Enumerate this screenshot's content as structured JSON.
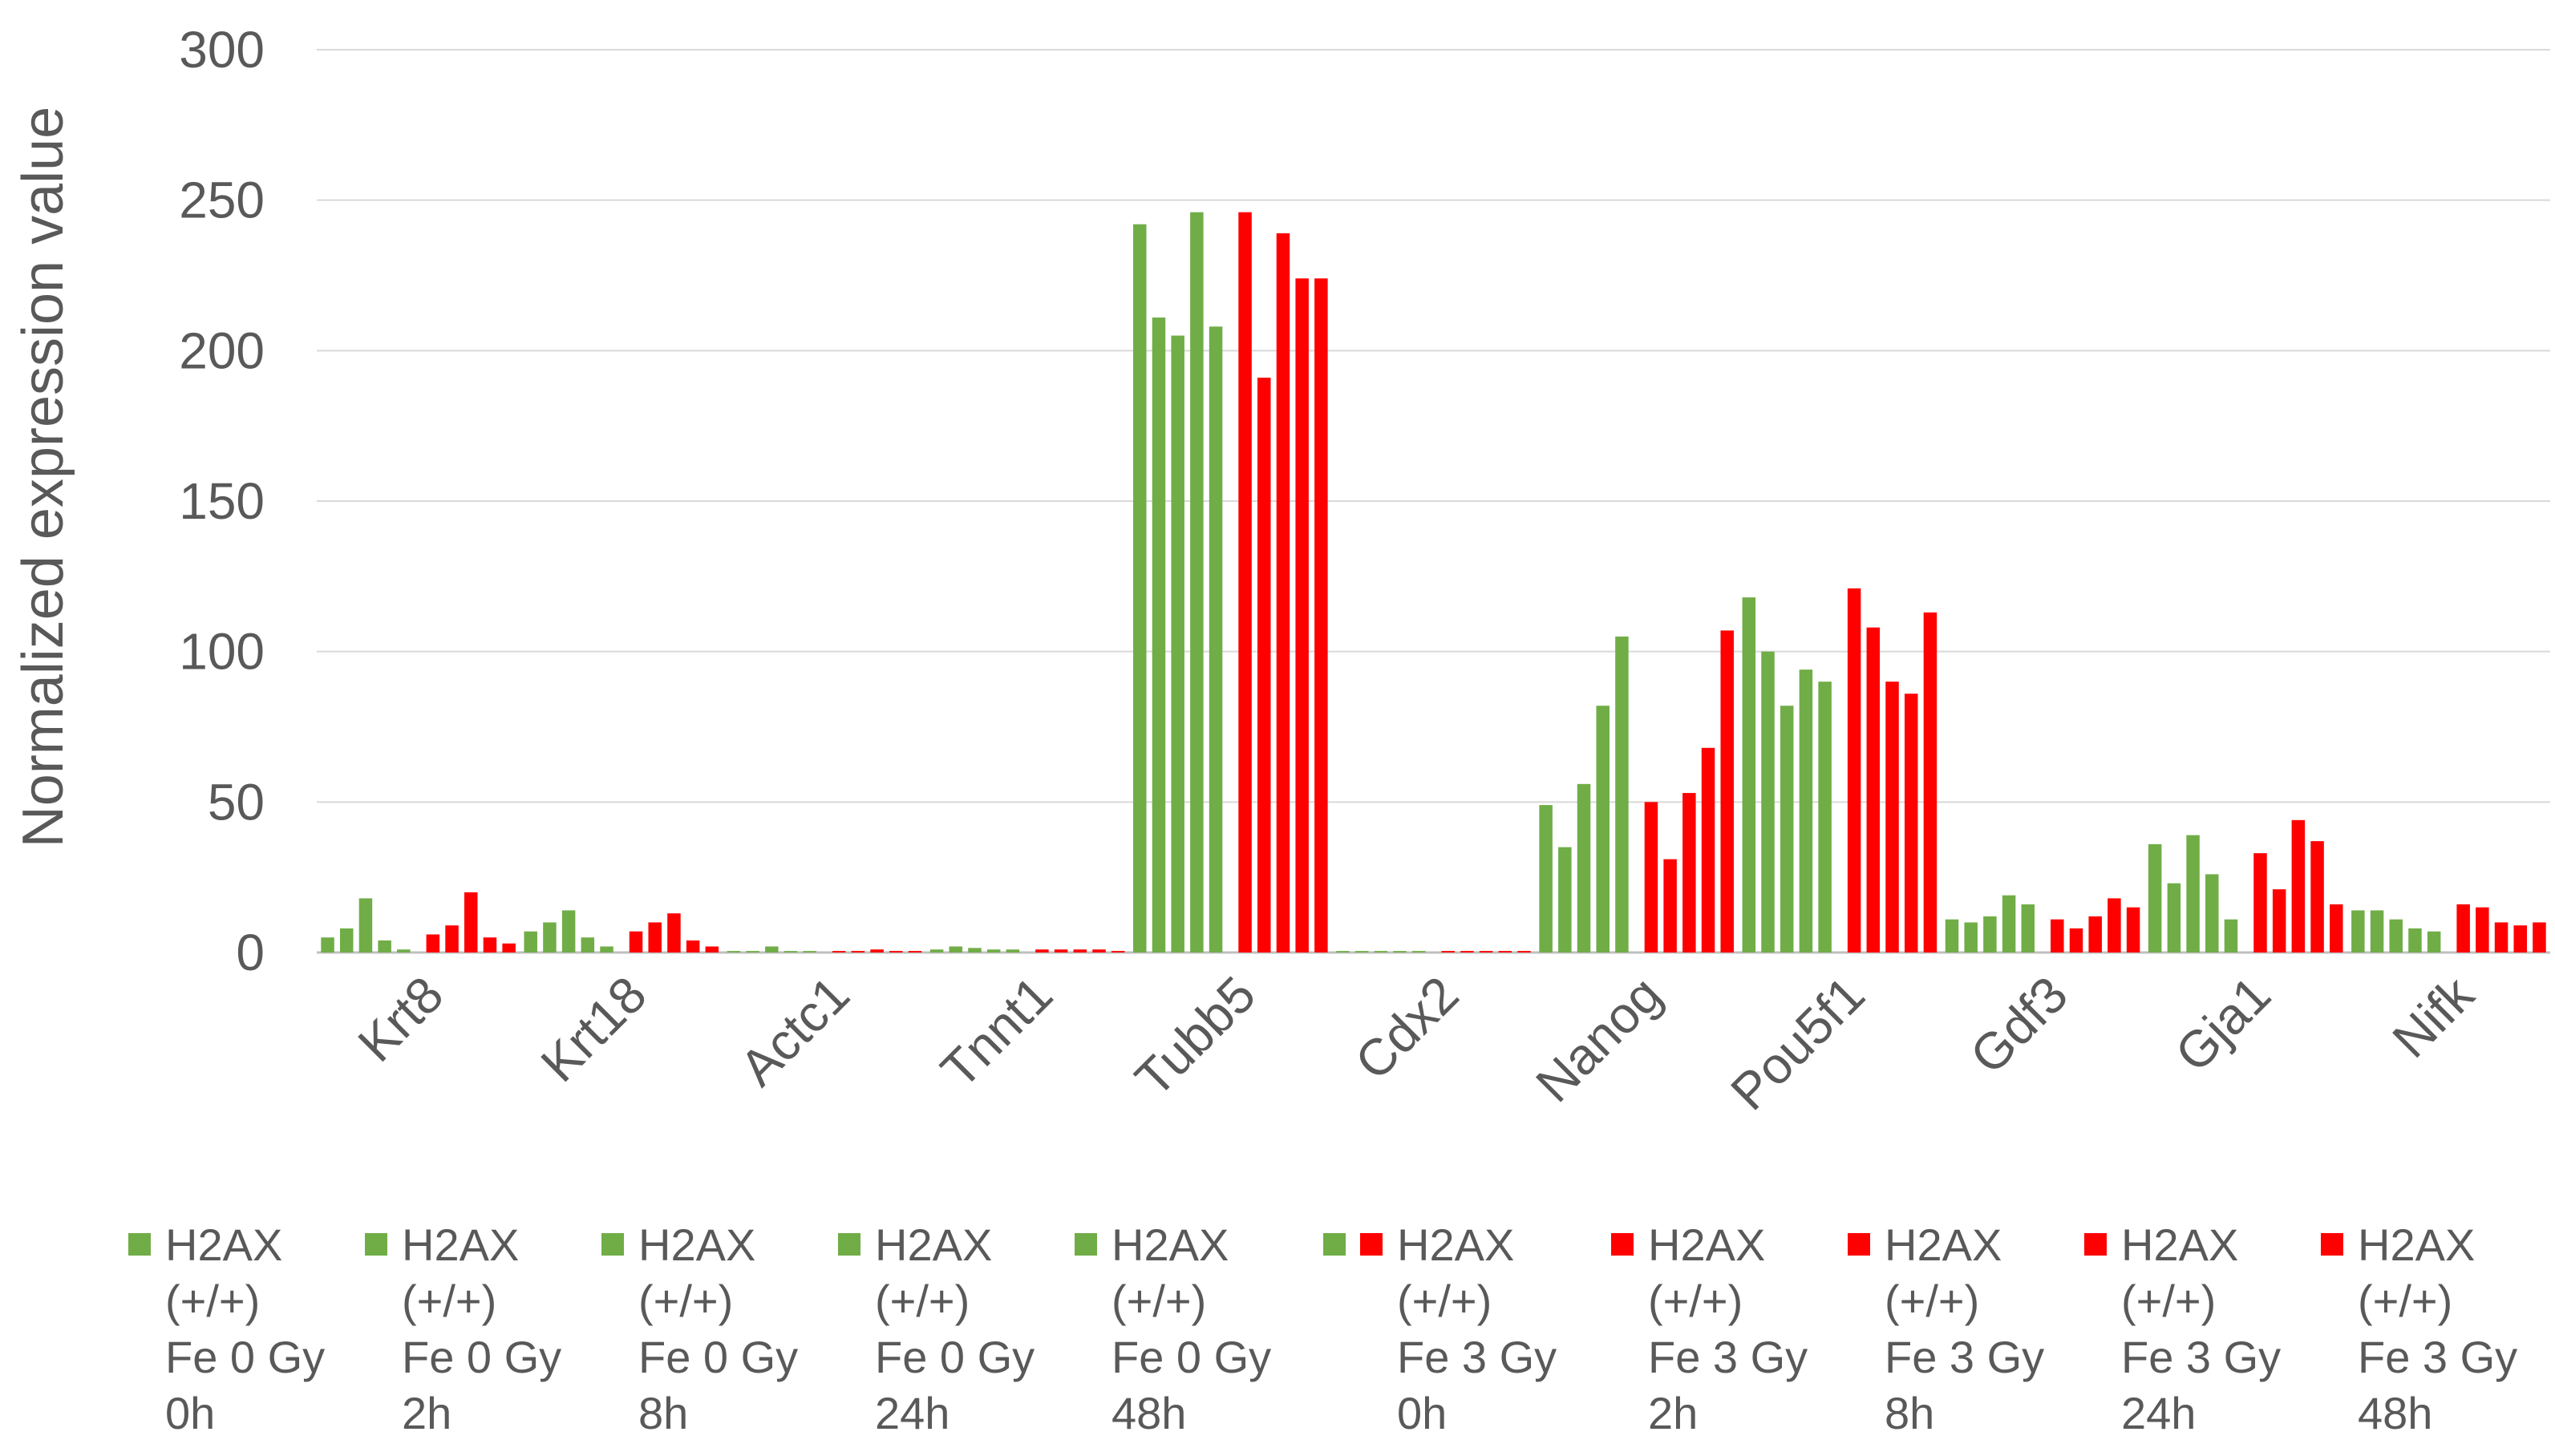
{
  "chart_data": {
    "type": "bar",
    "title": "",
    "xlabel": "",
    "ylabel": "Normalized expression value",
    "ylim": [
      0,
      300
    ],
    "yticks": [
      "0",
      "50",
      "100",
      "150",
      "200",
      "250",
      "300"
    ],
    "grid": true,
    "legend_position": "bottom",
    "categories": [
      "Krt8",
      "Krt18",
      "Actc1",
      "Tnnt1",
      "Tubb5",
      "Cdx2",
      "Nanog",
      "Pou5f1",
      "Gdf3",
      "Gja1",
      "Nifk"
    ],
    "series": [
      {
        "name": "H2AX (+/+) Fe 0 Gy 0h",
        "color": "#70AD47",
        "values": [
          5,
          7,
          0.5,
          1,
          242,
          0.5,
          49,
          118,
          11,
          36,
          14
        ]
      },
      {
        "name": "H2AX (+/+) Fe 0 Gy 2h",
        "color": "#70AD47",
        "values": [
          8,
          10,
          0.5,
          2,
          211,
          0.5,
          35,
          100,
          10,
          23,
          14
        ]
      },
      {
        "name": "H2AX (+/+) Fe 0 Gy 8h",
        "color": "#70AD47",
        "values": [
          18,
          14,
          2,
          1.5,
          205,
          0.5,
          56,
          82,
          12,
          39,
          11
        ]
      },
      {
        "name": "H2AX (+/+) Fe 0 Gy 24h",
        "color": "#70AD47",
        "values": [
          4,
          5,
          0.5,
          1,
          246,
          0.5,
          82,
          94,
          19,
          26,
          8
        ]
      },
      {
        "name": "H2AX (+/+) Fe 0 Gy 48h",
        "color": "#70AD47",
        "values": [
          1,
          2,
          0.5,
          1,
          208,
          0.5,
          105,
          90,
          16,
          11,
          7
        ]
      },
      {
        "name": "H2AX (+/+) Fe 3 Gy 0h",
        "color": "#FF0000",
        "values": [
          6,
          7,
          0.5,
          1,
          246,
          0.5,
          50,
          121,
          11,
          33,
          16
        ]
      },
      {
        "name": "H2AX (+/+) Fe 3 Gy 2h",
        "color": "#FF0000",
        "values": [
          9,
          10,
          0.5,
          1,
          191,
          0.5,
          31,
          108,
          8,
          21,
          15
        ]
      },
      {
        "name": "H2AX (+/+) Fe 3 Gy 8h",
        "color": "#FF0000",
        "values": [
          20,
          13,
          1,
          1,
          239,
          0.5,
          53,
          90,
          12,
          44,
          10
        ]
      },
      {
        "name": "H2AX (+/+) Fe 3 Gy 24h",
        "color": "#FF0000",
        "values": [
          5,
          4,
          0.5,
          1,
          224,
          0.5,
          68,
          86,
          18,
          37,
          9
        ]
      },
      {
        "name": "H2AX (+/+) Fe 3 Gy 48h",
        "color": "#FF0000",
        "values": [
          3,
          2,
          0.5,
          0.5,
          224,
          0.5,
          107,
          113,
          15,
          16,
          10
        ]
      }
    ]
  },
  "legend": {
    "items": [
      {
        "label": "H2AX\n(+/+)\nFe 0 Gy\n0h",
        "color": "#70AD47"
      },
      {
        "label": "H2AX\n(+/+)\nFe 0 Gy\n2h",
        "color": "#70AD47"
      },
      {
        "label": "H2AX\n(+/+)\nFe 0 Gy\n8h",
        "color": "#70AD47"
      },
      {
        "label": "H2AX\n(+/+)\nFe 0 Gy\n24h",
        "color": "#70AD47"
      },
      {
        "label": "H2AX\n(+/+)\nFe 0 Gy\n48h",
        "color": "#70AD47"
      },
      {
        "label": "H2AX\n(+/+)\nFe 3 Gy\n0h",
        "color": "#FF0000"
      },
      {
        "label": "H2AX\n(+/+)\nFe 3 Gy\n2h",
        "color": "#FF0000"
      },
      {
        "label": "H2AX\n(+/+)\nFe 3 Gy\n8h",
        "color": "#FF0000"
      },
      {
        "label": "H2AX\n(+/+)\nFe 3 Gy\n24h",
        "color": "#FF0000"
      },
      {
        "label": "H2AX\n(+/+)\nFe 3 Gy\n48h",
        "color": "#FF0000"
      }
    ]
  }
}
